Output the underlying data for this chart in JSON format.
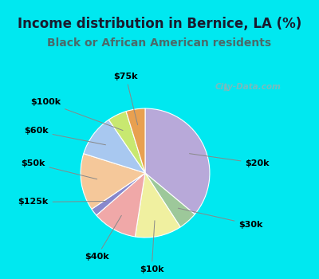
{
  "title": "Income distribution in Bernice, LA (%)",
  "subtitle": "Black or African American residents",
  "header_color": "#00e8f0",
  "chart_bg_color": "#dff0e8",
  "segments": [
    {
      "label": "$20k",
      "value": 34.0,
      "color": "#b8a9d9"
    },
    {
      "label": "$30k",
      "value": 4.5,
      "color": "#9dc89a"
    },
    {
      "label": "$10k",
      "value": 11.0,
      "color": "#f0f0a0"
    },
    {
      "label": "$40k",
      "value": 10.5,
      "color": "#f0a8a8"
    },
    {
      "label": "$125k",
      "value": 1.8,
      "color": "#8888cc"
    },
    {
      "label": "$50k",
      "value": 13.5,
      "color": "#f5c89a"
    },
    {
      "label": "$60k",
      "value": 10.0,
      "color": "#a8c8f0"
    },
    {
      "label": "$100k",
      "value": 4.5,
      "color": "#c8e870"
    },
    {
      "label": "$75k",
      "value": 4.5,
      "color": "#e8a050"
    }
  ],
  "title_fontsize": 12,
  "subtitle_fontsize": 10,
  "label_fontsize": 8,
  "startangle": 90,
  "watermark": "City-Data.com"
}
